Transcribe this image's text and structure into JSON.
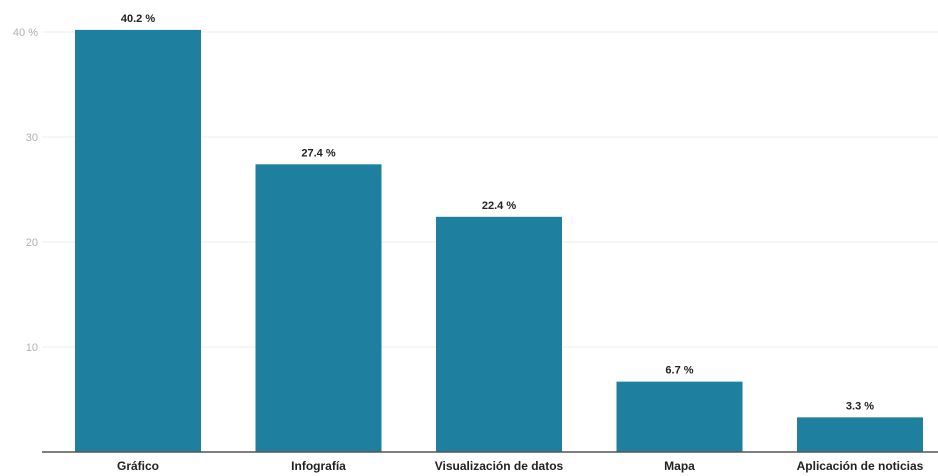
{
  "chart_data": {
    "type": "bar",
    "categories": [
      "Gráfico",
      "Infografía",
      "Visualización de datos",
      "Mapa",
      "Aplicación de noticias"
    ],
    "values": [
      40.2,
      27.4,
      22.4,
      6.7,
      3.3
    ],
    "value_labels": [
      "40.2 %",
      "27.4 %",
      "22.4 %",
      "6.7 %",
      "3.3 %"
    ],
    "y_ticks": [
      {
        "value": 10,
        "label": "10"
      },
      {
        "value": 20,
        "label": "20"
      },
      {
        "value": 30,
        "label": "30"
      },
      {
        "value": 40,
        "label": "40 %"
      }
    ],
    "ylim": [
      0,
      40
    ],
    "grid": true,
    "bar_color": "#1f7f9f",
    "title": "",
    "xlabel": "",
    "ylabel": ""
  }
}
